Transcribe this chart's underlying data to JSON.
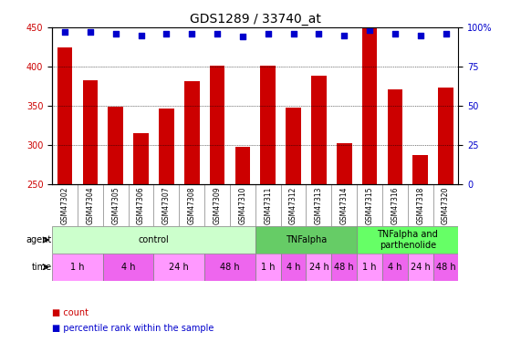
{
  "title": "GDS1289 / 33740_at",
  "samples": [
    "GSM47302",
    "GSM47304",
    "GSM47305",
    "GSM47306",
    "GSM47307",
    "GSM47308",
    "GSM47309",
    "GSM47310",
    "GSM47311",
    "GSM47312",
    "GSM47313",
    "GSM47314",
    "GSM47315",
    "GSM47316",
    "GSM47318",
    "GSM47320"
  ],
  "counts": [
    425,
    383,
    349,
    316,
    347,
    381,
    401,
    298,
    401,
    348,
    389,
    303,
    449,
    371,
    288,
    374
  ],
  "percentiles": [
    97,
    97,
    96,
    95,
    96,
    96,
    96,
    94,
    96,
    96,
    96,
    95,
    98,
    96,
    95,
    96
  ],
  "ylim_left": [
    250,
    450
  ],
  "ylim_right": [
    0,
    100
  ],
  "yticks_left": [
    250,
    300,
    350,
    400,
    450
  ],
  "yticks_right": [
    0,
    25,
    50,
    75,
    100
  ],
  "bar_color": "#cc0000",
  "dot_color": "#0000cc",
  "bar_width": 0.6,
  "agents": [
    {
      "label": "control",
      "start": 0,
      "end": 8,
      "color": "#ccffcc"
    },
    {
      "label": "TNFalpha",
      "start": 8,
      "end": 12,
      "color": "#66cc66"
    },
    {
      "label": "TNFalpha and\nparthenolide",
      "start": 12,
      "end": 16,
      "color": "#66ff66"
    }
  ],
  "times": [
    {
      "label": "1 h",
      "start": 0,
      "end": 2,
      "color": "#ff99ff"
    },
    {
      "label": "4 h",
      "start": 2,
      "end": 4,
      "color": "#ee66ee"
    },
    {
      "label": "24 h",
      "start": 4,
      "end": 6,
      "color": "#ff99ff"
    },
    {
      "label": "48 h",
      "start": 6,
      "end": 8,
      "color": "#ee66ee"
    },
    {
      "label": "1 h",
      "start": 8,
      "end": 9,
      "color": "#ff99ff"
    },
    {
      "label": "4 h",
      "start": 9,
      "end": 10,
      "color": "#ee66ee"
    },
    {
      "label": "24 h",
      "start": 10,
      "end": 11,
      "color": "#ff99ff"
    },
    {
      "label": "48 h",
      "start": 11,
      "end": 12,
      "color": "#ee66ee"
    },
    {
      "label": "1 h",
      "start": 12,
      "end": 13,
      "color": "#ff99ff"
    },
    {
      "label": "4 h",
      "start": 13,
      "end": 14,
      "color": "#ee66ee"
    },
    {
      "label": "24 h",
      "start": 14,
      "end": 15,
      "color": "#ff99ff"
    },
    {
      "label": "48 h",
      "start": 15,
      "end": 16,
      "color": "#ee66ee"
    }
  ],
  "xlabel_agent": "agent",
  "xlabel_time": "time",
  "legend_count_label": "count",
  "legend_pct_label": "percentile rank within the sample",
  "tick_label_fontsize": 7,
  "axis_label_fontsize": 8,
  "title_fontsize": 10
}
